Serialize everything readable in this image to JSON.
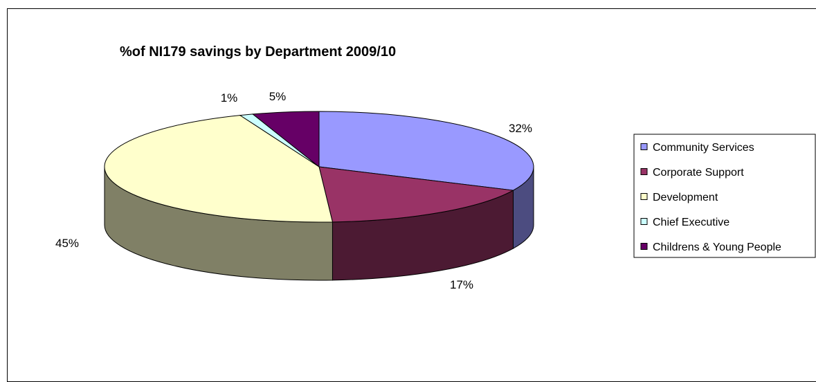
{
  "chart_data": {
    "type": "pie",
    "title": "%of NI179 savings by Department 2009/10",
    "categories": [
      "Community Services",
      "Corporate Support",
      "Development",
      "Chief Executive",
      "Childrens & Young People"
    ],
    "values": [
      32,
      17,
      45,
      1,
      5
    ],
    "data_labels": [
      "32%",
      "17%",
      "45%",
      "1%",
      "5%"
    ],
    "colors": [
      "#9999FF",
      "#993366",
      "#FFFFCC",
      "#CCFFFF",
      "#660066"
    ],
    "side_colors": [
      "#4C4C80",
      "#4C1A33",
      "#808066",
      "#668080",
      "#330033"
    ],
    "legend_position": "right",
    "three_d": true
  }
}
